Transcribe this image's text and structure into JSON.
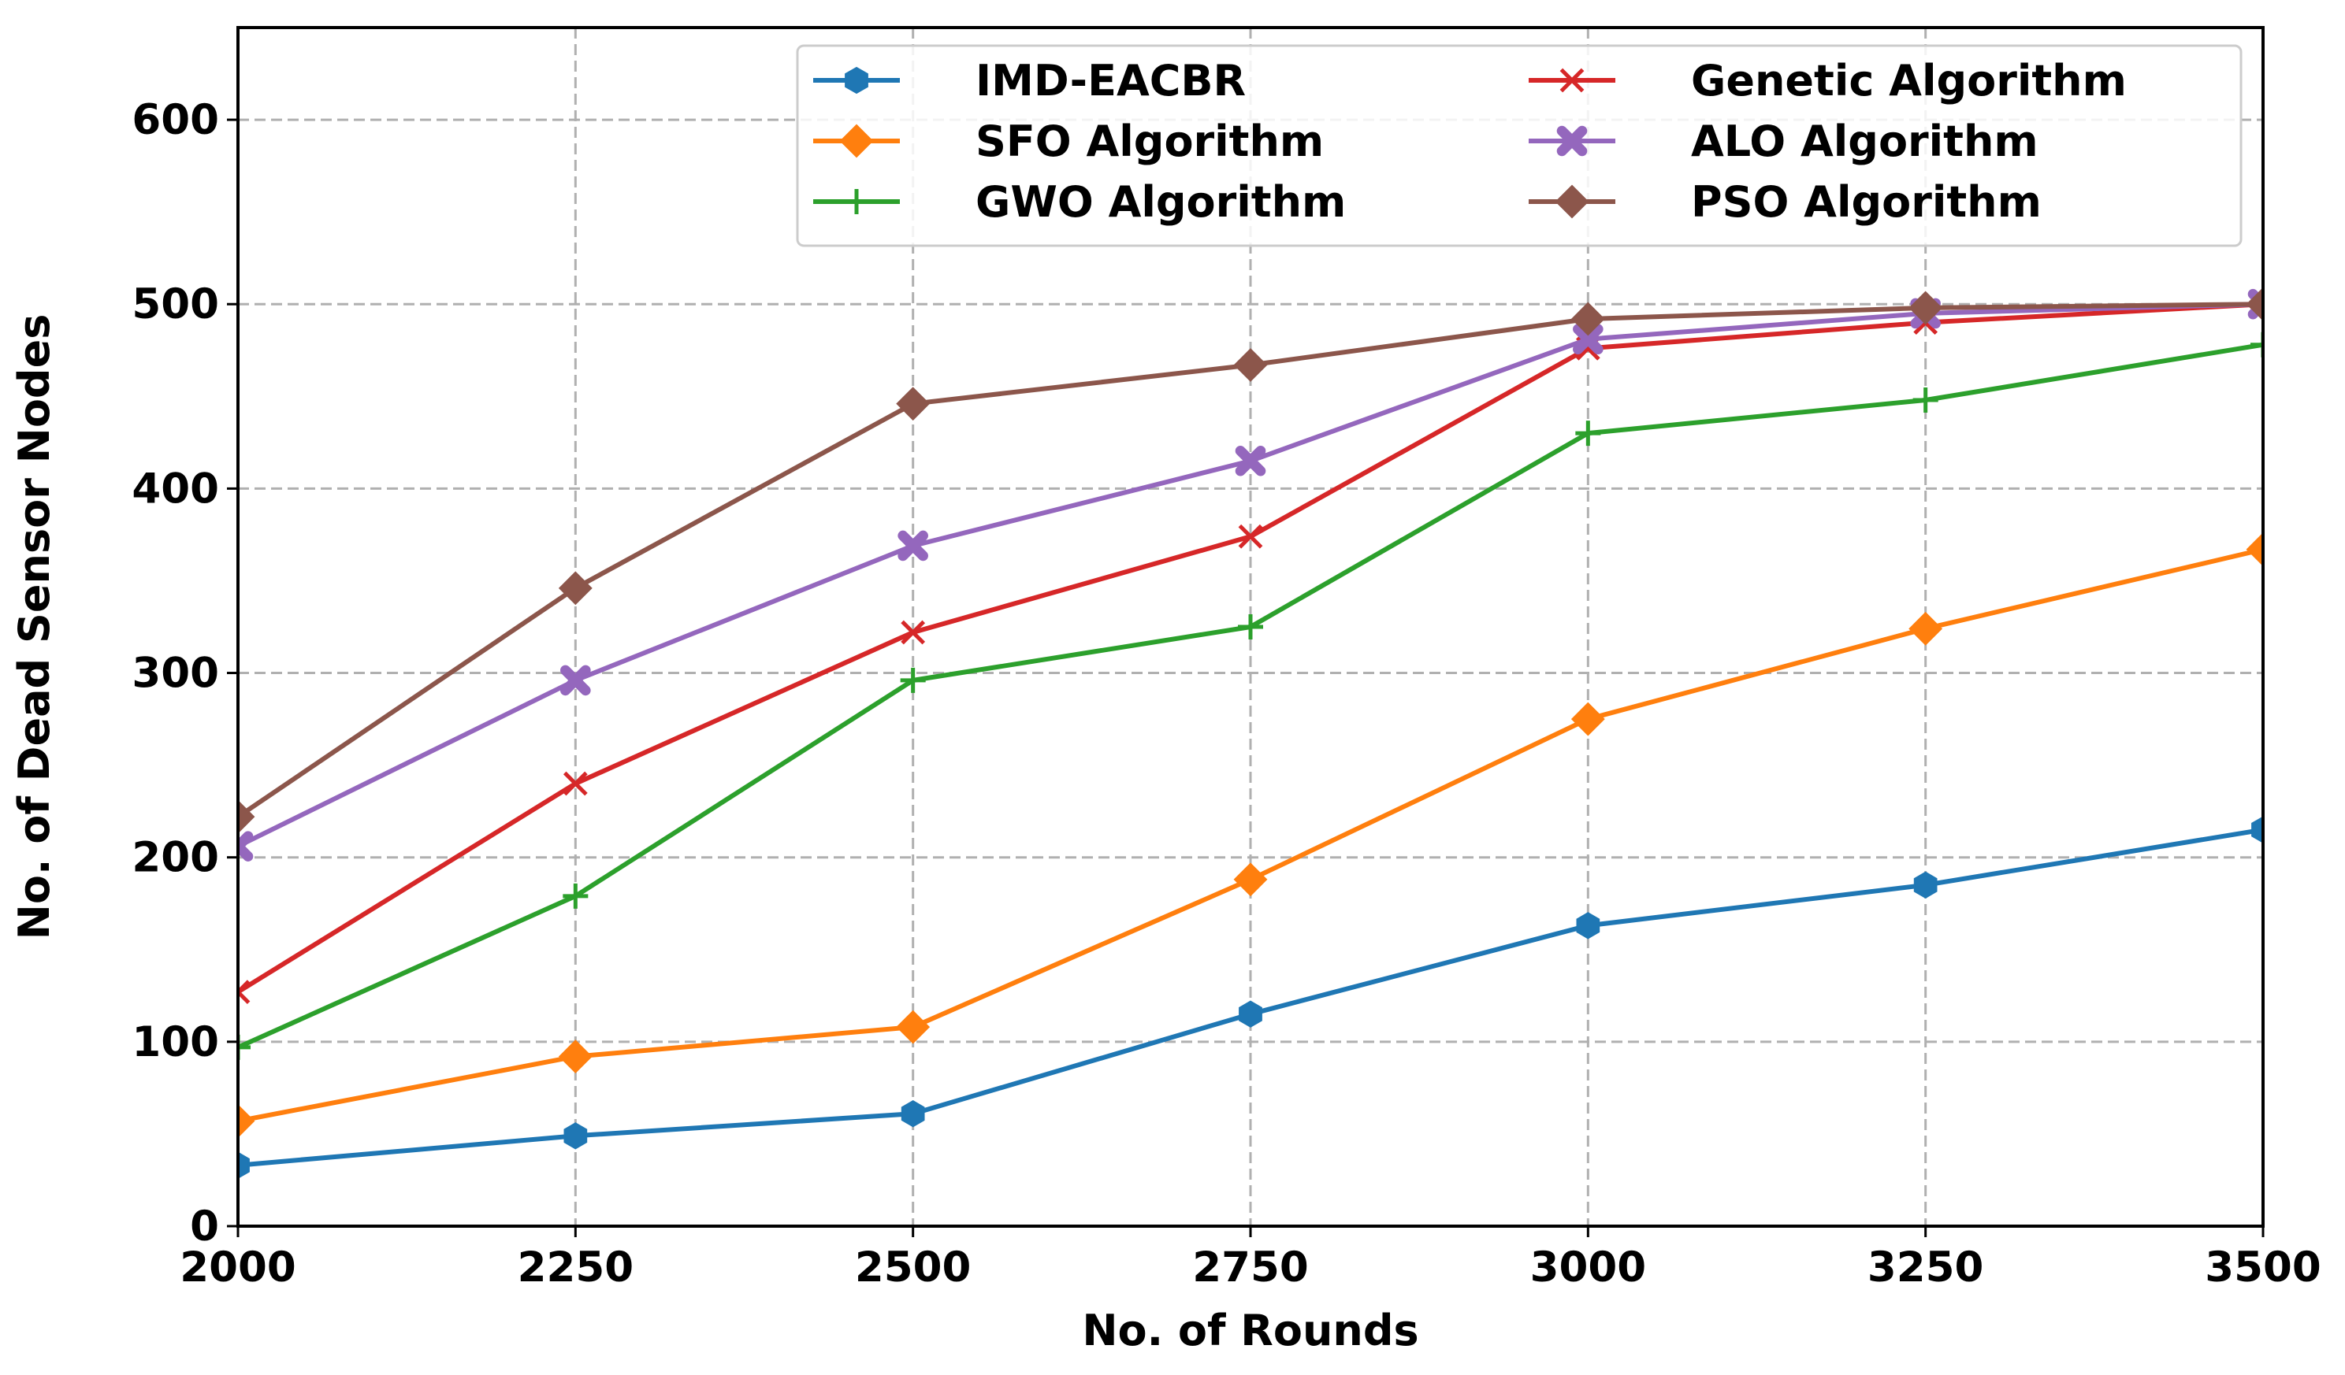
{
  "chart_data": {
    "type": "line",
    "title": "",
    "xlabel": "No. of Rounds",
    "ylabel": "No. of Dead Sensor Nodes",
    "x": [
      2000,
      2250,
      2500,
      2750,
      3000,
      3250,
      3500
    ],
    "xlim": [
      2000,
      3500
    ],
    "ylim": [
      0,
      650
    ],
    "xticks": [
      "2000",
      "2250",
      "2500",
      "2750",
      "3000",
      "3250",
      "3500"
    ],
    "yticks": [
      "0",
      "100",
      "200",
      "300",
      "400",
      "500",
      "600"
    ],
    "grid": true,
    "legend_position": "top-right",
    "series": [
      {
        "name": "IMD-EACBR",
        "color": "#1f77b4",
        "marker": "hexagon",
        "values": [
          33,
          49,
          61,
          115,
          163,
          185,
          215
        ]
      },
      {
        "name": "SFO Algorithm",
        "color": "#ff7f0e",
        "marker": "diamond",
        "values": [
          57,
          92,
          108,
          188,
          275,
          324,
          367
        ]
      },
      {
        "name": "GWO Algorithm",
        "color": "#2ca02c",
        "marker": "plus",
        "values": [
          97,
          179,
          296,
          325,
          430,
          448,
          478
        ]
      },
      {
        "name": "Genetic Algorithm",
        "color": "#d62728",
        "marker": "x",
        "values": [
          127,
          240,
          322,
          374,
          476,
          490,
          500
        ]
      },
      {
        "name": "ALO Algorithm",
        "color": "#9467bd",
        "marker": "filled-x",
        "values": [
          206,
          296,
          369,
          415,
          481,
          495,
          500
        ]
      },
      {
        "name": "PSO Algorithm",
        "color": "#8c564b",
        "marker": "diamond",
        "values": [
          222,
          346,
          446,
          467,
          492,
          498,
          500
        ]
      }
    ]
  }
}
